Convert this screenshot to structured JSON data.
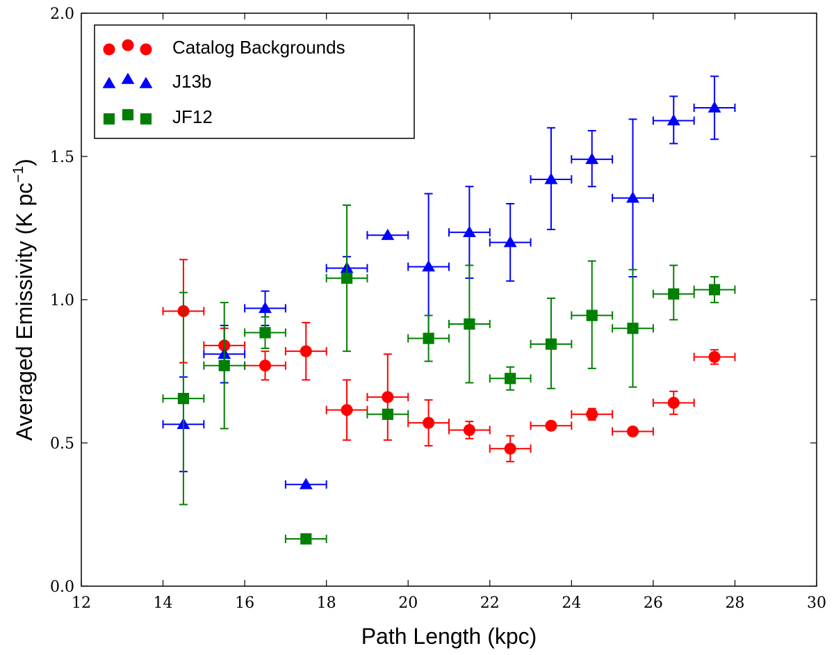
{
  "chart_data": {
    "type": "scatter",
    "title": "",
    "xlabel": "Path Length (kpc)",
    "ylabel": "Averaged Emissivity (K pc",
    "ylabel_sup": "−1",
    "ylabel_close": ")",
    "xlim": [
      12,
      30
    ],
    "ylim": [
      0.0,
      2.0
    ],
    "xticks": [
      12,
      14,
      16,
      18,
      20,
      22,
      24,
      26,
      28,
      30
    ],
    "xtick_labels": [
      "12",
      "14",
      "16",
      "18",
      "20",
      "22",
      "24",
      "26",
      "28",
      "30"
    ],
    "yticks": [
      0.0,
      0.5,
      1.0,
      1.5,
      2.0
    ],
    "ytick_labels": [
      "0.0",
      "0.5",
      "1.0",
      "1.5",
      "2.0"
    ],
    "grid": false,
    "legend_position": "top-left",
    "series": [
      {
        "name": "Catalog Backgrounds",
        "color": "#ff0000",
        "marker": "circle",
        "x": [
          14.5,
          15.5,
          16.5,
          17.5,
          18.5,
          19.5,
          20.5,
          21.5,
          22.5,
          23.5,
          24.5,
          25.5,
          26.5,
          27.5
        ],
        "y": [
          0.96,
          0.84,
          0.77,
          0.82,
          0.615,
          0.66,
          0.57,
          0.545,
          0.48,
          0.56,
          0.6,
          0.54,
          0.64,
          0.8
        ],
        "xerr": [
          0.5,
          0.5,
          0.5,
          0.5,
          0.5,
          0.5,
          0.5,
          0.5,
          0.5,
          0.5,
          0.5,
          0.5,
          0.5,
          0.5
        ],
        "yerr_low": [
          0.18,
          0.06,
          0.05,
          0.1,
          0.105,
          0.15,
          0.08,
          0.03,
          0.045,
          0.01,
          0.02,
          0.01,
          0.04,
          0.025
        ],
        "yerr_high": [
          0.18,
          0.06,
          0.05,
          0.1,
          0.105,
          0.15,
          0.08,
          0.03,
          0.045,
          0.01,
          0.02,
          0.01,
          0.04,
          0.025
        ]
      },
      {
        "name": "J13b",
        "color": "#0000ff",
        "marker": "triangle",
        "x": [
          14.5,
          15.5,
          16.5,
          17.5,
          18.5,
          19.5,
          20.5,
          21.5,
          22.5,
          23.5,
          24.5,
          25.5,
          26.5,
          27.5
        ],
        "y": [
          0.565,
          0.81,
          0.97,
          0.355,
          1.11,
          1.225,
          1.115,
          1.235,
          1.2,
          1.42,
          1.49,
          1.355,
          1.625,
          1.67
        ],
        "xerr": [
          0.5,
          0.5,
          0.5,
          0.5,
          0.5,
          0.5,
          0.5,
          0.5,
          0.5,
          0.5,
          0.5,
          0.5,
          0.5,
          0.5
        ],
        "yerr_low": [
          0.165,
          0.1,
          0.06,
          0.0,
          0.04,
          0.0,
          0.25,
          0.16,
          0.135,
          0.175,
          0.095,
          0.275,
          0.08,
          0.11
        ],
        "yerr_high": [
          0.165,
          0.1,
          0.06,
          0.0,
          0.04,
          0.0,
          0.255,
          0.16,
          0.135,
          0.18,
          0.1,
          0.275,
          0.085,
          0.11
        ]
      },
      {
        "name": "JF12",
        "color": "#008000",
        "marker": "square",
        "x": [
          14.5,
          15.5,
          16.5,
          17.5,
          18.5,
          19.5,
          20.5,
          21.5,
          22.5,
          23.5,
          24.5,
          25.5,
          26.5,
          27.5
        ],
        "y": [
          0.655,
          0.77,
          0.885,
          0.165,
          1.075,
          0.6,
          0.865,
          0.915,
          0.725,
          0.845,
          0.945,
          0.9,
          1.02,
          1.035
        ],
        "xerr": [
          0.5,
          0.5,
          0.5,
          0.5,
          0.5,
          0.5,
          0.5,
          0.5,
          0.5,
          0.5,
          0.5,
          0.5,
          0.5,
          0.5
        ],
        "yerr_low": [
          0.37,
          0.22,
          0.055,
          0.0,
          0.255,
          0.0,
          0.08,
          0.205,
          0.04,
          0.155,
          0.185,
          0.205,
          0.09,
          0.045
        ],
        "yerr_high": [
          0.37,
          0.22,
          0.055,
          0.0,
          0.255,
          0.0,
          0.08,
          0.205,
          0.04,
          0.16,
          0.19,
          0.205,
          0.1,
          0.045
        ]
      }
    ]
  }
}
